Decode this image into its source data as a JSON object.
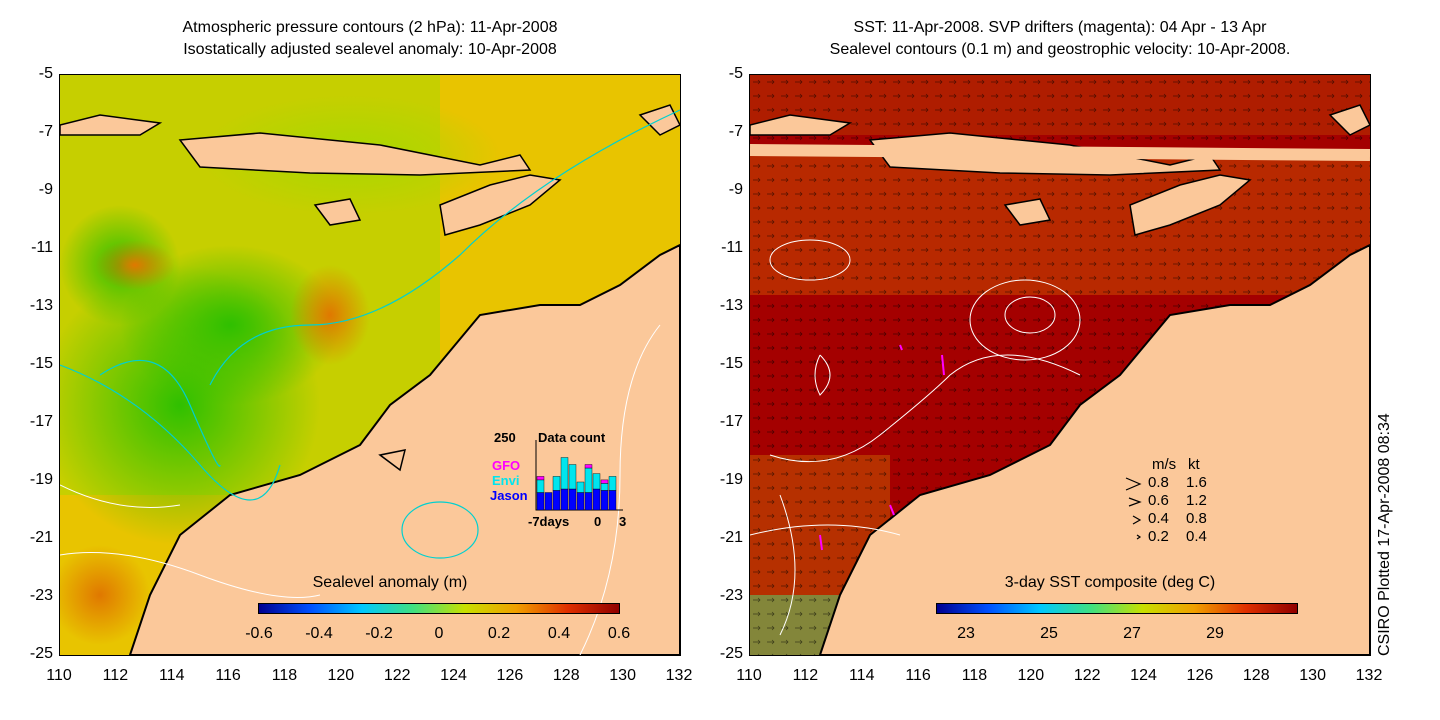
{
  "left_panel": {
    "title_line1": "Atmospheric pressure contours (2 hPa): 11-Apr-2008",
    "title_line2": "Isostatically adjusted sealevel anomaly: 10-Apr-2008",
    "colorbar_label": "Sealevel anomaly (m)",
    "colorbar_ticks": [
      "-0.6",
      "-0.4",
      "-0.2",
      "0",
      "0.2",
      "0.4",
      "0.6"
    ],
    "inset": {
      "max_label": "250",
      "title": "Data count",
      "legend": [
        "GFO",
        "Envi",
        "Jason"
      ],
      "legend_colors": [
        "#ff00ff",
        "#00e5ee",
        "#0000ff"
      ],
      "xlabels": [
        "-7days",
        "0",
        "3"
      ],
      "bars_jason": [
        0.25,
        0.25,
        0.28,
        0.3,
        0.3,
        0.25,
        0.25,
        0.3,
        0.28,
        0.28
      ],
      "bars_envi": [
        0.18,
        0.0,
        0.2,
        0.45,
        0.35,
        0.15,
        0.35,
        0.22,
        0.1,
        0.2
      ],
      "bars_gfo": [
        0.05,
        0.0,
        0.0,
        0.0,
        0.0,
        0.0,
        0.05,
        0.0,
        0.05,
        0.0
      ]
    }
  },
  "right_panel": {
    "title_line1": "SST: 11-Apr-2008. SVP drifters (magenta): 04 Apr - 13 Apr",
    "title_line2": "Sealevel contours (0.1 m) and geostrophic velocity: 10-Apr-2008.",
    "colorbar_label": "3-day SST composite (deg C)",
    "colorbar_ticks": [
      "23",
      "25",
      "27",
      "29"
    ],
    "velocity_legend": {
      "header_ms": "m/s",
      "header_kt": "kt",
      "rows": [
        {
          "ms": "0.8",
          "kt": "1.6"
        },
        {
          "ms": "0.6",
          "kt": "1.2"
        },
        {
          "ms": "0.4",
          "kt": "0.8"
        },
        {
          "ms": "0.2",
          "kt": "0.4"
        }
      ]
    }
  },
  "axes": {
    "yticks": [
      "-5",
      "-7",
      "-9",
      "-11",
      "-13",
      "-15",
      "-17",
      "-19",
      "-21",
      "-23",
      "-25"
    ],
    "xticks": [
      "110",
      "112",
      "114",
      "116",
      "118",
      "120",
      "122",
      "124",
      "126",
      "128",
      "130",
      "132"
    ]
  },
  "credit": "CSIRO Plotted 17-Apr-2008 08:34",
  "colors": {
    "land": "#fbc89a",
    "ocean_left": "#e6c800",
    "ocean_right": "#a80000"
  }
}
